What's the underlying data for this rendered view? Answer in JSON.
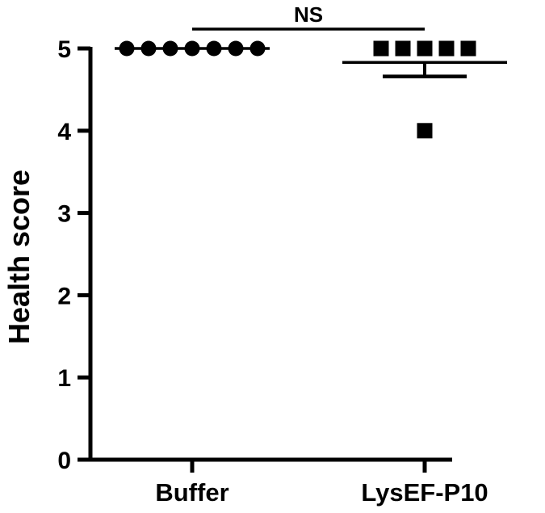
{
  "chart_data": {
    "type": "scatter",
    "title": "",
    "xlabel": "",
    "ylabel": "Health score",
    "ylim": [
      0,
      5
    ],
    "yticks": [
      "0",
      "1",
      "2",
      "3",
      "4",
      "5"
    ],
    "grid": false,
    "categories": [
      "Buffer",
      "LysEF-P10"
    ],
    "series": [
      {
        "category": "Buffer",
        "marker": "circle",
        "values": [
          5,
          5,
          5,
          5,
          5,
          5,
          5
        ],
        "mean": 5.0,
        "sem": 0
      },
      {
        "category": "LysEF-P10",
        "marker": "square",
        "values": [
          5,
          5,
          5,
          5,
          5,
          4
        ],
        "mean": 4.83,
        "sem": 0.17
      }
    ],
    "annotations": [
      {
        "text": "NS",
        "between": [
          "Buffer",
          "LysEF-P10"
        ]
      }
    ],
    "colors": {
      "marks": "#000000",
      "background": "#ffffff"
    }
  }
}
